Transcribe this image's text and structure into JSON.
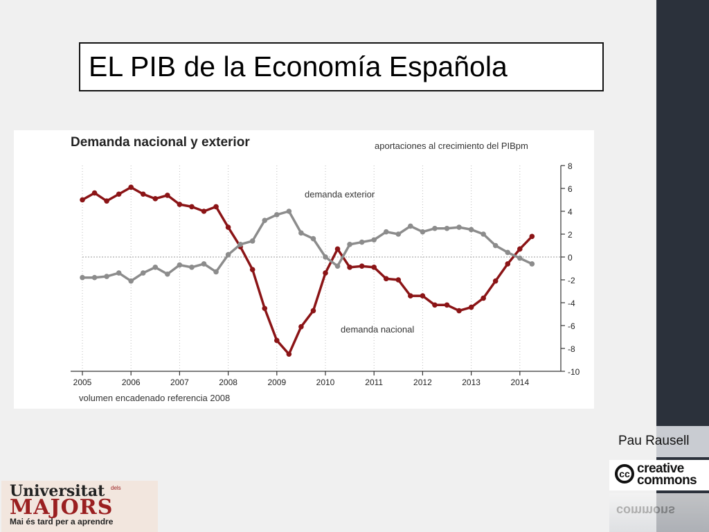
{
  "slide": {
    "title": "EL PIB de la Economía Española",
    "author": "Pau Rausell",
    "cc_logo": {
      "line1": "creative",
      "line2": "commons",
      "symbol": "cc",
      "reflection_text": "commons"
    },
    "um_logo": {
      "line1": "Universitat",
      "dels": "dels",
      "line2": "MAJORS",
      "line3": "Mai és tard per a aprendre"
    },
    "colors": {
      "sidebar": "#2b313b",
      "demanda_nacional": "#8b1416",
      "demanda_exterior": "#8c8c8c"
    }
  },
  "chart_data": {
    "type": "line",
    "title": "Demanda nacional y exterior",
    "subtitle": "aportaciones al crecimiento del PIBpm",
    "footnote": "volumen encadenado referencia 2008",
    "x_tick_labels": [
      "2005",
      "2006",
      "2007",
      "2008",
      "2009",
      "2010",
      "2011",
      "2012",
      "2013",
      "2014"
    ],
    "y_tick_labels": [
      "8",
      "6",
      "4",
      "2",
      "0",
      "-2",
      "-4",
      "-6",
      "-8",
      "-10"
    ],
    "ylim": [
      -10,
      8
    ],
    "xlim": [
      2005.0,
      2014.75
    ],
    "y_axis_side": "right",
    "zero_line": "dotted",
    "x": [
      2005.0,
      2005.25,
      2005.5,
      2005.75,
      2006.0,
      2006.25,
      2006.5,
      2006.75,
      2007.0,
      2007.25,
      2007.5,
      2007.75,
      2008.0,
      2008.25,
      2008.5,
      2008.75,
      2009.0,
      2009.25,
      2009.5,
      2009.75,
      2010.0,
      2010.25,
      2010.5,
      2010.75,
      2011.0,
      2011.25,
      2011.5,
      2011.75,
      2012.0,
      2012.25,
      2012.5,
      2012.75,
      2013.0,
      2013.25,
      2013.5,
      2013.75,
      2014.0,
      2014.25
    ],
    "series": [
      {
        "name": "demanda nacional",
        "color": "#8b1416",
        "values": [
          5.0,
          5.6,
          4.9,
          5.5,
          6.1,
          5.5,
          5.1,
          5.4,
          4.6,
          4.4,
          4.0,
          4.4,
          2.6,
          0.9,
          -1.1,
          -4.5,
          -7.3,
          -8.5,
          -6.1,
          -4.7,
          -1.4,
          0.7,
          -0.9,
          -0.8,
          -0.9,
          -1.9,
          -2.0,
          -3.4,
          -3.4,
          -4.2,
          -4.2,
          -4.7,
          -4.4,
          -3.6,
          -2.1,
          -0.6,
          0.7,
          1.8
        ]
      },
      {
        "name": "demanda exterior",
        "color": "#8c8c8c",
        "values": [
          -1.8,
          -1.8,
          -1.7,
          -1.4,
          -2.1,
          -1.4,
          -0.9,
          -1.5,
          -0.7,
          -0.9,
          -0.6,
          -1.3,
          0.2,
          1.1,
          1.4,
          3.2,
          3.7,
          4.0,
          2.1,
          1.6,
          0.0,
          -0.8,
          1.1,
          1.3,
          1.5,
          2.2,
          2.0,
          2.7,
          2.2,
          2.5,
          2.5,
          2.6,
          2.4,
          2.0,
          1.0,
          0.4,
          -0.1,
          -0.6
        ]
      }
    ]
  }
}
